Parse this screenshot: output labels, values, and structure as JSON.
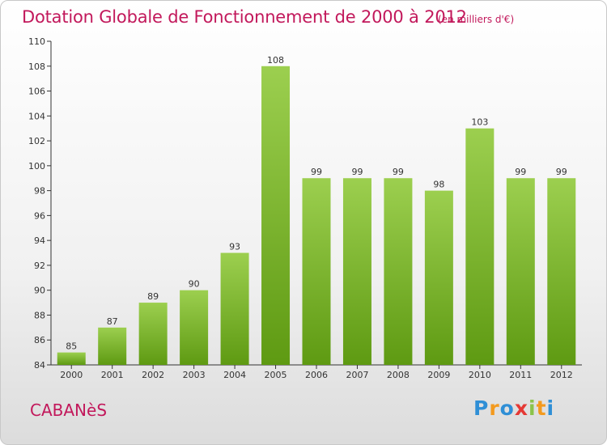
{
  "header": {
    "title": "Dotation Globale de Fonctionnement de 2000 à 2012",
    "subtitle": "(en milliers d'€)"
  },
  "footer": {
    "commune": "CABANèS",
    "logo_text": "Proxiti"
  },
  "colors": {
    "title": "#c2185b",
    "bar_light": "#9ccf4f",
    "bar_dark": "#5e9a12",
    "axis": "#333333"
  },
  "chart_data": {
    "type": "bar",
    "title": "Dotation Globale de Fonctionnement de 2000 à 2012",
    "subtitle": "(en milliers d'€)",
    "xlabel": "",
    "ylabel": "",
    "categories": [
      "2000",
      "2001",
      "2002",
      "2003",
      "2004",
      "2005",
      "2006",
      "2007",
      "2008",
      "2009",
      "2010",
      "2011",
      "2012"
    ],
    "values": [
      85,
      87,
      89,
      90,
      93,
      108,
      99,
      99,
      99,
      98,
      103,
      99,
      99
    ],
    "ylim": [
      84,
      110
    ],
    "yticks": [
      84,
      86,
      88,
      90,
      92,
      94,
      96,
      98,
      100,
      102,
      104,
      106,
      108,
      110
    ],
    "grid": false,
    "data_labels": true
  }
}
